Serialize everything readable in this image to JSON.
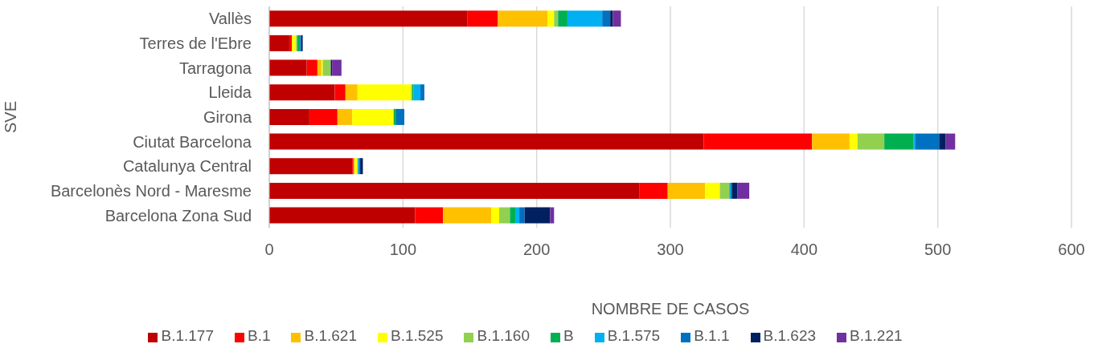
{
  "chart_data": {
    "type": "bar",
    "orientation": "horizontal",
    "stacked": true,
    "xlabel": "NOMBRE DE CASOS",
    "ylabel": "SVE",
    "categories": [
      "Vallès",
      "Terres de l'Ebre",
      "Tarragona",
      "Lleida",
      "Girona",
      "Ciutat Barcelona",
      "Catalunya Central",
      "Barcelonès Nord - Maresme",
      "Barcelona Zona Sud"
    ],
    "series": [
      {
        "name": "B.1.177",
        "color": "#c00000",
        "values": [
          148,
          15,
          28,
          49,
          30,
          325,
          62,
          277,
          109
        ]
      },
      {
        "name": "B.1",
        "color": "#ff0000",
        "values": [
          23,
          2,
          8,
          8,
          21,
          81,
          1,
          21,
          21
        ]
      },
      {
        "name": "B.1.621",
        "color": "#ffc000",
        "values": [
          37,
          0,
          3,
          9,
          11,
          28,
          1,
          28,
          36
        ]
      },
      {
        "name": "B.1.525",
        "color": "#ffff00",
        "values": [
          5,
          3,
          1,
          40,
          31,
          6,
          2,
          11,
          6
        ]
      },
      {
        "name": "B.1.160",
        "color": "#92d050",
        "values": [
          3,
          1,
          6,
          1,
          0,
          20,
          0,
          7,
          8
        ]
      },
      {
        "name": "B",
        "color": "#00b050",
        "values": [
          7,
          2,
          0,
          1,
          2,
          22,
          0,
          0,
          4
        ]
      },
      {
        "name": "B.1.575",
        "color": "#00b0f0",
        "values": [
          26,
          0,
          0,
          5,
          0,
          1,
          1,
          1,
          3
        ]
      },
      {
        "name": "B.1.1",
        "color": "#0070c0",
        "values": [
          6,
          1,
          0,
          3,
          6,
          18,
          1,
          1,
          4
        ]
      },
      {
        "name": "B.1.623",
        "color": "#002060",
        "values": [
          2,
          1,
          1,
          0,
          0,
          5,
          2,
          4,
          19
        ]
      },
      {
        "name": "B.1.221",
        "color": "#7030a0",
        "values": [
          6,
          0,
          7,
          0,
          0,
          7,
          0,
          9,
          3
        ]
      }
    ],
    "xlim": [
      0,
      600
    ],
    "xticks": [
      0,
      100,
      200,
      300,
      400,
      500,
      600
    ],
    "grid": "x",
    "legend": "bottom"
  }
}
